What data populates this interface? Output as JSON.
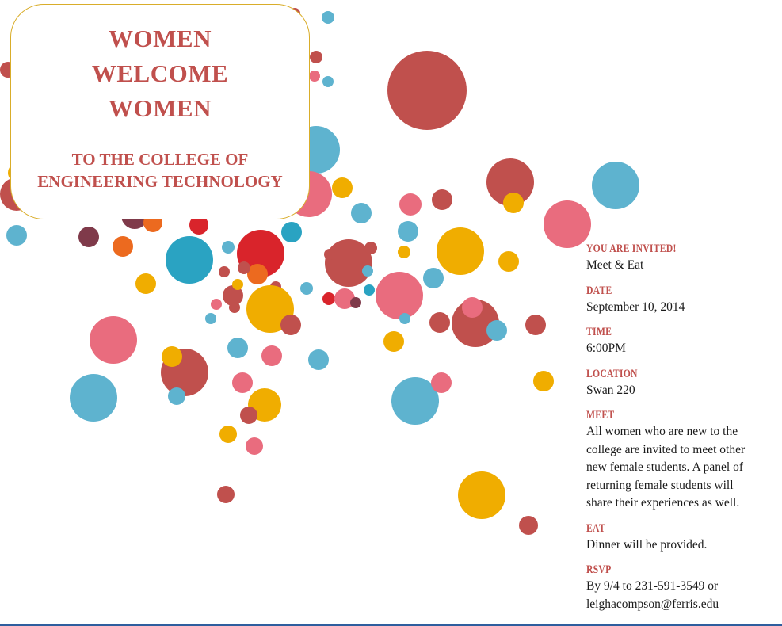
{
  "title": {
    "lines": [
      "WOMEN",
      "WELCOME",
      "WOMEN"
    ],
    "subtitle_lines": [
      "TO THE COLLEGE OF",
      "ENGINEERING TECHNOLOGY"
    ]
  },
  "sections": {
    "invited": {
      "heading": "YOU ARE INVITED!",
      "text": "Meet & Eat"
    },
    "date": {
      "heading": "DATE",
      "text": "September 10, 2014"
    },
    "time": {
      "heading": "TIME",
      "text": "6:00PM"
    },
    "location": {
      "heading": "LOCATION",
      "text": "Swan 220"
    },
    "meet": {
      "heading": "MEET",
      "lines": [
        "All women who are new to the",
        "college are invited to meet other",
        "new female students.  A panel of",
        "returning female students will",
        "share their experiences as well."
      ]
    },
    "eat": {
      "heading": "EAT",
      "text": "Dinner will be provided."
    },
    "rsvp": {
      "heading": "RSVP",
      "lines": [
        "By 9/4 to 231-591-3549 or",
        "leighacompson@ferris.edu"
      ]
    }
  },
  "colors": {
    "accent_red": "#c0504d",
    "blue": "#5eb3cf",
    "pink": "#e96c7e",
    "yellow": "#f0ad00",
    "bright_red": "#d9242b",
    "orange": "#ec6a1f",
    "maroon": "#7f3a4a",
    "teal": "#2aa3c2"
  }
}
